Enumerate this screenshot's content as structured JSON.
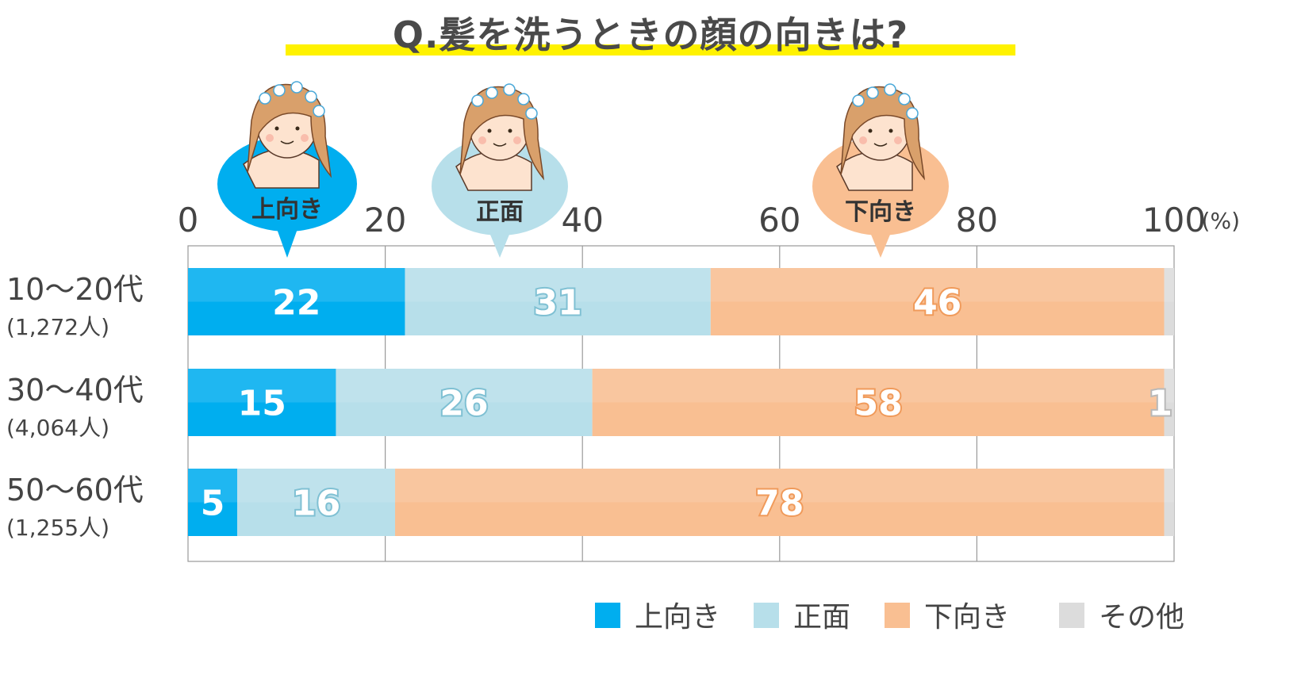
{
  "title": "Q.髪を洗うときの顔の向きは?",
  "unit_label": "(%)",
  "colors": {
    "up": "#00aeef",
    "front": "#b7dfea",
    "down": "#f9bf92",
    "other": "#dcdcdc",
    "axis_text": "#444444",
    "grid": "#999999"
  },
  "callouts": [
    {
      "label": "上向き",
      "series": "up"
    },
    {
      "label": "正面",
      "series": "front"
    },
    {
      "label": "下向き",
      "series": "down"
    }
  ],
  "chart_data": {
    "type": "bar",
    "orientation": "horizontal",
    "stacked": true,
    "xlim": [
      0,
      100
    ],
    "xticks": [
      0,
      20,
      40,
      60,
      80,
      100
    ],
    "grid": true,
    "legend_position": "bottom-right",
    "categories": [
      {
        "label": "10～20代",
        "sub": "(1,272人)"
      },
      {
        "label": "30～40代",
        "sub": "(4,064人)"
      },
      {
        "label": "50～60代",
        "sub": "(1,255人)"
      }
    ],
    "series": [
      {
        "key": "up",
        "name": "上向き",
        "values": [
          22,
          15,
          5
        ],
        "labels": [
          "22",
          "15",
          "5"
        ]
      },
      {
        "key": "front",
        "name": "正面",
        "values": [
          31,
          26,
          16
        ],
        "labels": [
          "31",
          "26",
          "16"
        ]
      },
      {
        "key": "down",
        "name": "下向き",
        "values": [
          46,
          58,
          78
        ],
        "labels": [
          "46",
          "58",
          "78"
        ]
      },
      {
        "key": "other",
        "name": "その他",
        "values": [
          1,
          1,
          1
        ],
        "labels": [
          "",
          "1",
          ""
        ]
      }
    ]
  }
}
